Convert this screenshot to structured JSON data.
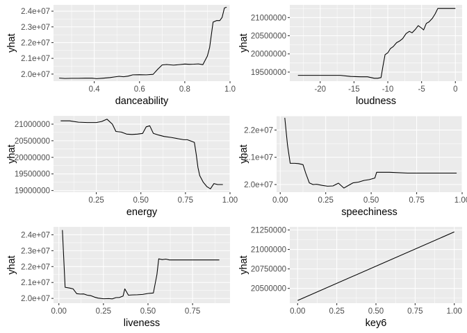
{
  "chart_data": [
    {
      "type": "line",
      "xlabel": "danceability",
      "ylabel": "yhat",
      "xlim": [
        0.22,
        1.0
      ],
      "ylim": [
        19550000,
        24400000
      ],
      "x_ticks": [
        0.4,
        0.6,
        0.8,
        1.0
      ],
      "x_tick_labels": [
        "0.4",
        "0.6",
        "0.8",
        "1.0"
      ],
      "y_ticks": [
        20000000,
        21000000,
        22000000,
        23000000,
        24000000
      ],
      "y_tick_labels": [
        "2.0e+07",
        "2.1e+07",
        "2.2e+07",
        "2.3e+07",
        "2.4e+07"
      ],
      "grid": true,
      "x": [
        0.245,
        0.27,
        0.3,
        0.33,
        0.36,
        0.39,
        0.41,
        0.44,
        0.47,
        0.49,
        0.51,
        0.53,
        0.55,
        0.57,
        0.6,
        0.63,
        0.66,
        0.68,
        0.7,
        0.72,
        0.75,
        0.78,
        0.8,
        0.82,
        0.84,
        0.86,
        0.88,
        0.9,
        0.91,
        0.925,
        0.94,
        0.955,
        0.965,
        0.975,
        0.985
      ],
      "y": [
        19750000,
        19720000,
        19730000,
        19730000,
        19740000,
        19740000,
        19710000,
        19740000,
        19780000,
        19820000,
        19860000,
        19830000,
        19870000,
        19950000,
        19960000,
        19950000,
        19980000,
        20300000,
        20580000,
        20610000,
        20570000,
        20610000,
        20640000,
        20620000,
        20630000,
        20650000,
        20600000,
        21150000,
        21700000,
        23300000,
        23400000,
        23400000,
        23600000,
        24200000,
        24250000
      ]
    },
    {
      "type": "line",
      "xlabel": "loudness",
      "ylabel": "yhat",
      "xlim": [
        -24.5,
        1.0
      ],
      "ylim": [
        19250000,
        21350000
      ],
      "x_ticks": [
        -20,
        -15,
        -10,
        -5,
        0
      ],
      "x_tick_labels": [
        "-20",
        "-15",
        "-10",
        "-5",
        "0"
      ],
      "y_ticks": [
        19500000,
        20000000,
        20500000,
        21000000
      ],
      "y_tick_labels": [
        "19500000",
        "20000000",
        "20500000",
        "21000000"
      ],
      "grid": true,
      "x": [
        -23.3,
        -21,
        -19,
        -17,
        -15.5,
        -14,
        -13,
        -12,
        -11.5,
        -11,
        -10.7,
        -10.4,
        -10,
        -9.6,
        -9.2,
        -8.7,
        -8.3,
        -7.8,
        -7.3,
        -6.8,
        -6.4,
        -5.9,
        -5.5,
        -5,
        -4.7,
        -4.3,
        -3.9,
        -3.4,
        -3.0,
        -2.6,
        -2.2,
        -1.5,
        -0.9,
        0.0
      ],
      "y": [
        19410000,
        19410000,
        19410000,
        19410000,
        19380000,
        19370000,
        19370000,
        19330000,
        19330000,
        19350000,
        19680000,
        19980000,
        20030000,
        20150000,
        20200000,
        20310000,
        20350000,
        20420000,
        20560000,
        20620000,
        20580000,
        20680000,
        20780000,
        20710000,
        20660000,
        20840000,
        20880000,
        20980000,
        21100000,
        21250000,
        21250000,
        21250000,
        21250000,
        21250000
      ]
    },
    {
      "type": "line",
      "xlabel": "energy",
      "ylabel": "yhat",
      "xlim": [
        0.01,
        1.0
      ],
      "ylim": [
        18950000,
        21250000
      ],
      "x_ticks": [
        0.25,
        0.5,
        0.75,
        1.0
      ],
      "x_tick_labels": [
        "0.25",
        "0.50",
        "0.75",
        "1.00"
      ],
      "y_ticks": [
        19000000,
        19500000,
        20000000,
        20500000,
        21000000
      ],
      "y_tick_labels": [
        "19000000",
        "19500000",
        "20000000",
        "20500000",
        "21000000"
      ],
      "grid": true,
      "x": [
        0.05,
        0.1,
        0.15,
        0.2,
        0.25,
        0.28,
        0.31,
        0.34,
        0.36,
        0.39,
        0.42,
        0.45,
        0.48,
        0.51,
        0.53,
        0.55,
        0.57,
        0.6,
        0.63,
        0.67,
        0.71,
        0.74,
        0.76,
        0.78,
        0.8,
        0.81,
        0.82,
        0.83,
        0.85,
        0.87,
        0.89,
        0.91,
        0.93,
        0.96
      ],
      "y": [
        21100000,
        21100000,
        21060000,
        21050000,
        21050000,
        21080000,
        21150000,
        21000000,
        20780000,
        20760000,
        20700000,
        20690000,
        20700000,
        20720000,
        20920000,
        20950000,
        20720000,
        20670000,
        20630000,
        20600000,
        20560000,
        20530000,
        20530000,
        20490000,
        20450000,
        20100000,
        19700000,
        19450000,
        19250000,
        19120000,
        19050000,
        19210000,
        19180000,
        19180000
      ]
    },
    {
      "type": "line",
      "xlabel": "speechiness",
      "ylabel": "yhat",
      "xlim": [
        -0.02,
        1.0
      ],
      "ylim": [
        19720000,
        22520000
      ],
      "x_ticks": [
        0.0,
        0.25,
        0.5,
        0.75,
        1.0
      ],
      "x_tick_labels": [
        "0.00",
        "0.25",
        "0.50",
        "0.75",
        "1.00"
      ],
      "y_ticks": [
        20000000,
        21000000,
        22000000
      ],
      "y_tick_labels": [
        "2.0e+07",
        "2.1e+07",
        "2.2e+07"
      ],
      "grid": true,
      "x": [
        0.025,
        0.04,
        0.055,
        0.08,
        0.1,
        0.125,
        0.14,
        0.16,
        0.18,
        0.2,
        0.23,
        0.26,
        0.29,
        0.32,
        0.35,
        0.37,
        0.4,
        0.43,
        0.46,
        0.49,
        0.52,
        0.53,
        0.6,
        0.7,
        0.8,
        0.97
      ],
      "y": [
        22450000,
        21450000,
        20780000,
        20780000,
        20770000,
        20730000,
        20420000,
        20060000,
        20000000,
        20010000,
        19970000,
        19940000,
        19950000,
        20050000,
        19870000,
        19950000,
        20060000,
        20090000,
        20150000,
        20180000,
        20240000,
        20450000,
        20450000,
        20420000,
        20420000,
        20420000
      ]
    },
    {
      "type": "line",
      "xlabel": "liveness",
      "ylabel": "yhat",
      "xlim": [
        -0.03,
        0.96
      ],
      "ylim": [
        19700000,
        24500000
      ],
      "x_ticks": [
        0.0,
        0.25,
        0.5,
        0.75
      ],
      "x_tick_labels": [
        "0.00",
        "0.25",
        "0.50",
        "0.75"
      ],
      "y_ticks": [
        20000000,
        21000000,
        22000000,
        23000000,
        24000000
      ],
      "y_tick_labels": [
        "2.0e+07",
        "2.1e+07",
        "2.2e+07",
        "2.3e+07",
        "2.4e+07"
      ],
      "grid": true,
      "x": [
        0.02,
        0.035,
        0.06,
        0.08,
        0.1,
        0.12,
        0.14,
        0.16,
        0.18,
        0.2,
        0.22,
        0.25,
        0.28,
        0.3,
        0.32,
        0.34,
        0.36,
        0.37,
        0.39,
        0.41,
        0.44,
        0.47,
        0.5,
        0.53,
        0.55,
        0.56,
        0.58,
        0.6,
        0.62,
        0.7,
        0.8,
        0.9
      ],
      "y": [
        24300000,
        20700000,
        20650000,
        20600000,
        20300000,
        20270000,
        20280000,
        20200000,
        20170000,
        20080000,
        20020000,
        19980000,
        19990000,
        19970000,
        20050000,
        20060000,
        20150000,
        20600000,
        20200000,
        20220000,
        20230000,
        20250000,
        20310000,
        20340000,
        21500000,
        22490000,
        22440000,
        22470000,
        22420000,
        22420000,
        22420000,
        22420000
      ]
    },
    {
      "type": "line",
      "xlabel": "key6",
      "ylabel": "yhat",
      "xlim": [
        -0.05,
        1.05
      ],
      "ylim": [
        20310000,
        21290000
      ],
      "x_ticks": [
        0.0,
        0.25,
        0.5,
        0.75,
        1.0
      ],
      "x_tick_labels": [
        "0.00",
        "0.25",
        "0.50",
        "0.75",
        "1.00"
      ],
      "y_ticks": [
        20500000,
        20750000,
        21000000,
        21250000
      ],
      "y_tick_labels": [
        "20500000",
        "20750000",
        "21000000",
        "21250000"
      ],
      "grid": true,
      "x": [
        0.0,
        1.0
      ],
      "y": [
        20345000,
        21225000
      ]
    }
  ]
}
